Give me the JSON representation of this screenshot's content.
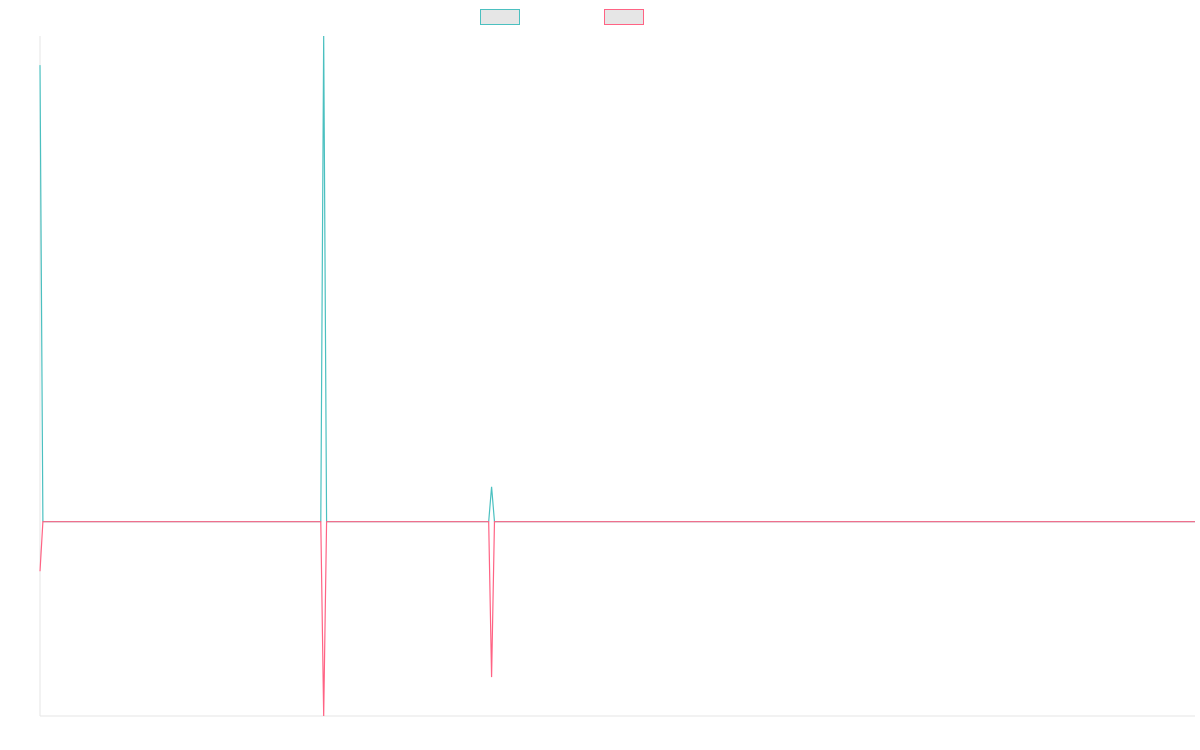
{
  "chart_data": {
    "type": "line",
    "title": "",
    "xlabel": "",
    "ylabel": "",
    "x_count": 400,
    "ylim": [
      -200,
      500
    ],
    "baseline": 0,
    "grid": false,
    "legend_position": "top",
    "series": [
      {
        "color": "#4bc0c0",
        "fill": "#e6e6e6",
        "baseline": 0,
        "spikes": [
          {
            "x": 0,
            "y": 470
          },
          {
            "x": 98,
            "y": 500
          },
          {
            "x": 156,
            "y": 36
          }
        ]
      },
      {
        "color": "#ff6384",
        "fill": "#e6e6e6",
        "baseline": 0,
        "spikes": [
          {
            "x": 0,
            "y": -51
          },
          {
            "x": 98,
            "y": -200
          },
          {
            "x": 156,
            "y": -160
          }
        ]
      }
    ]
  }
}
